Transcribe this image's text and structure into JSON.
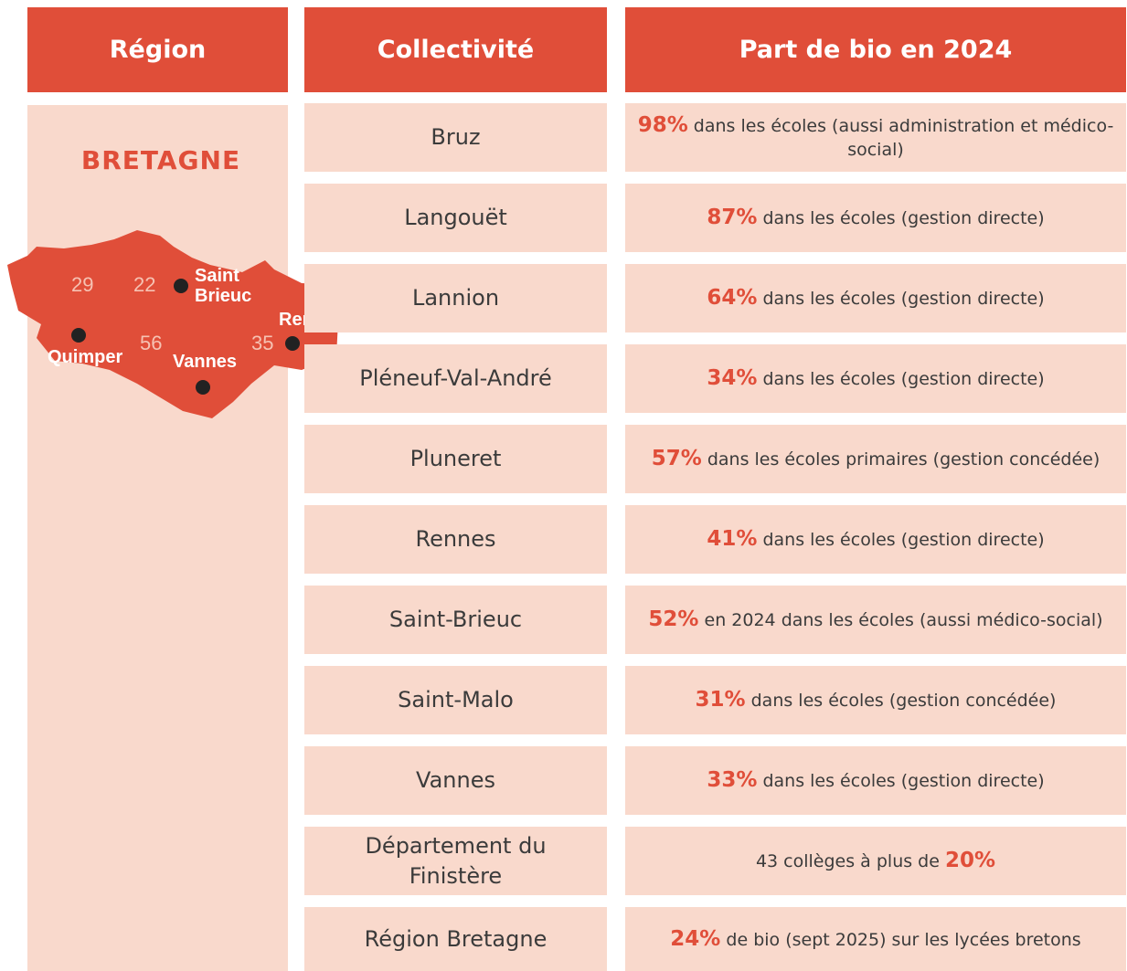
{
  "header": {
    "region": "Région",
    "collectivite": "Collectivité",
    "share": "Part de bio en 2024"
  },
  "region": {
    "name": "BRETAGNE",
    "map": {
      "departments": [
        "29",
        "22",
        "56",
        "35"
      ],
      "cities": [
        "Saint Brieuc",
        "Quimper",
        "Rennes",
        "Vannes"
      ]
    }
  },
  "rows": [
    {
      "collectivite": "Bruz",
      "highlight": "98%",
      "after": " dans les écoles (aussi administration et médico-social)"
    },
    {
      "collectivite": "Langouët",
      "highlight": "87%",
      "after": " dans les écoles (gestion directe)"
    },
    {
      "collectivite": "Lannion",
      "highlight": "64%",
      "after": " dans les écoles (gestion directe)"
    },
    {
      "collectivite": "Pléneuf-Val-André",
      "highlight": "34%",
      "after": " dans les écoles (gestion directe)"
    },
    {
      "collectivite": "Pluneret",
      "highlight": "57%",
      "after": " dans les écoles primaires (gestion concédée)"
    },
    {
      "collectivite": "Rennes",
      "highlight": "41%",
      "after": " dans les écoles (gestion directe)"
    },
    {
      "collectivite": "Saint-Brieuc",
      "highlight": "52%",
      "after": " en 2024 dans les écoles (aussi médico-social)"
    },
    {
      "collectivite": "Saint-Malo",
      "highlight": "31%",
      "after": " dans les écoles (gestion concédée)"
    },
    {
      "collectivite": "Vannes",
      "highlight": "33%",
      "after": " dans les écoles (gestion directe)"
    },
    {
      "collectivite": "Département du Finistère",
      "before": "43 collèges à plus de ",
      "highlight": "20%"
    },
    {
      "collectivite": "Région Bretagne",
      "highlight": "24%",
      "after": " de bio (sept 2025) sur les lycées bretons"
    }
  ]
}
